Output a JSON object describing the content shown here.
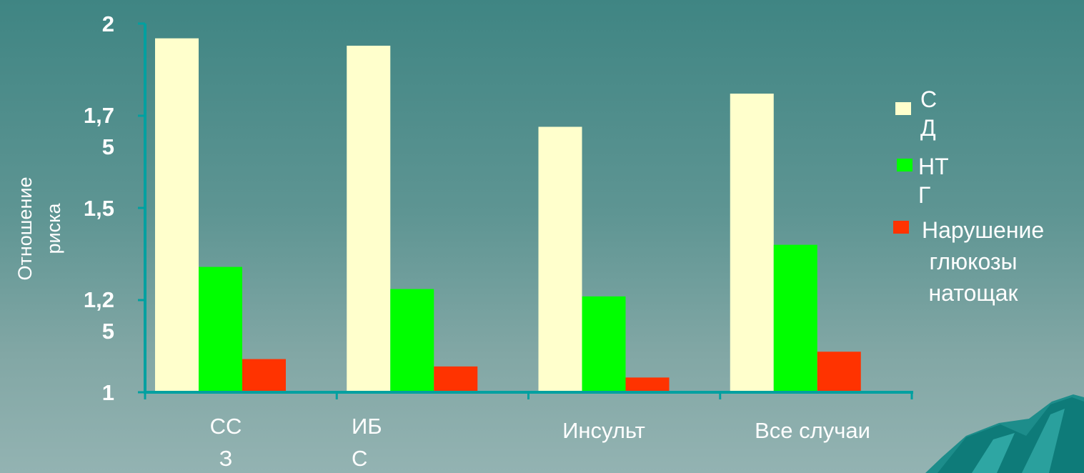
{
  "chart_data": {
    "type": "bar",
    "title": "",
    "xlabel": "",
    "ylabel_lines": [
      "Отношение",
      "риска"
    ],
    "ylim": [
      1,
      2
    ],
    "yticks": [
      {
        "value": 1,
        "lines": [
          "1"
        ]
      },
      {
        "value": 1.25,
        "lines": [
          "1,2",
          "5"
        ]
      },
      {
        "value": 1.5,
        "lines": [
          "1,5"
        ]
      },
      {
        "value": 1.75,
        "lines": [
          "1,7",
          "5"
        ]
      },
      {
        "value": 2,
        "lines": [
          "2"
        ]
      }
    ],
    "categories": [
      {
        "lines": [
          "СС",
          "З"
        ]
      },
      {
        "lines": [
          "ИБ",
          "С"
        ]
      },
      {
        "lines": [
          "Инсульт"
        ]
      },
      {
        "lines": [
          "Все случаи"
        ]
      }
    ],
    "series": [
      {
        "legend_lines": [
          "С",
          "Д"
        ],
        "color": "#ffffcc",
        "values": [
          1.96,
          1.94,
          1.72,
          1.81
        ]
      },
      {
        "legend_lines": [
          "НТ",
          "Г"
        ],
        "color": "#00ff00",
        "values": [
          1.34,
          1.28,
          1.26,
          1.4
        ]
      },
      {
        "legend_lines": [
          "Нарушение",
          "глюкозы",
          "натощак"
        ],
        "color": "#ff3300",
        "values": [
          1.09,
          1.07,
          1.04,
          1.11
        ]
      }
    ],
    "legend_position": "right",
    "grid": false
  },
  "colors": {
    "axis": "#00a0a0",
    "text": "#ffffff",
    "background_top": "#3f8583",
    "background_bottom": "#93b3b2"
  }
}
